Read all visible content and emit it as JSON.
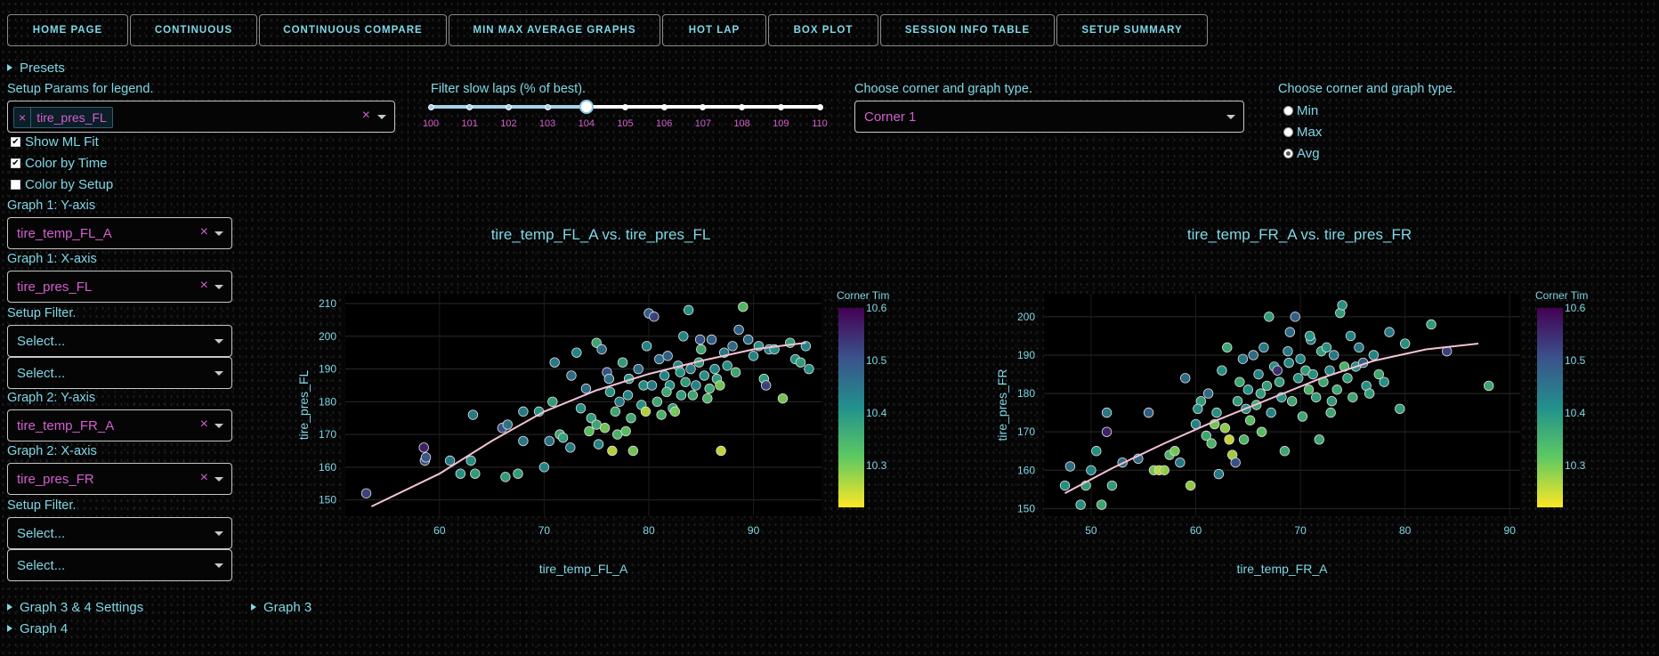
{
  "nav": {
    "tabs": [
      "HOME PAGE",
      "CONTINUOUS",
      "CONTINUOUS COMPARE",
      "MIN MAX AVERAGE GRAPHS",
      "HOT LAP",
      "BOX PLOT",
      "SESSION INFO TABLE",
      "SETUP SUMMARY"
    ]
  },
  "presets_label": "Presets",
  "legend": {
    "label": "Setup Params for legend.",
    "tag": "tire_pres_FL",
    "tag_remove": "×",
    "clear": "×"
  },
  "checkboxes": {
    "ml_fit": {
      "label": "Show ML Fit",
      "checked": true
    },
    "color_time": {
      "label": "Color by Time",
      "checked": true
    },
    "color_setup": {
      "label": "Color by Setup",
      "checked": false
    }
  },
  "graph1": {
    "y_label": "Graph 1: Y-axis",
    "y_value": "tire_temp_FL_A",
    "x_label": "Graph 1: X-axis",
    "x_value": "tire_pres_FL",
    "filter_label": "Setup Filter.",
    "filter1": "Select...",
    "filter2": "Select..."
  },
  "graph2": {
    "y_label": "Graph 2: Y-axis",
    "y_value": "tire_temp_FR_A",
    "x_label": "Graph 2: X-axis",
    "x_value": "tire_pres_FR",
    "filter_label": "Setup Filter.",
    "filter1": "Select...",
    "filter2": "Select..."
  },
  "clear_icon": "×",
  "slider": {
    "label": "Filter slow laps (% of best).",
    "marks": [
      "100",
      "101",
      "102",
      "103",
      "104",
      "105",
      "106",
      "107",
      "108",
      "109",
      "110"
    ],
    "value": 104
  },
  "corner": {
    "label": "Choose corner and graph type.",
    "value": "Corner 1"
  },
  "graph_type": {
    "label": "Choose corner and graph type.",
    "options": [
      "Min",
      "Max",
      "Avg"
    ],
    "selected": "Avg"
  },
  "collapsibles": {
    "g34": "Graph 3 & 4 Settings",
    "g3": "Graph 3",
    "g4": "Graph 4"
  },
  "colors": {
    "accent": "#7fd7e6",
    "value": "#d45fd0",
    "fit": "#f4c2d8"
  },
  "chart_data": [
    {
      "type": "scatter",
      "title": "tire_temp_FL_A vs. tire_pres_FL",
      "xlabel": "tire_temp_FL_A",
      "ylabel": "tire_pres_FL",
      "xlim": [
        51,
        96.5
      ],
      "ylim": [
        145,
        213
      ],
      "xticks": [
        60,
        70,
        80,
        90
      ],
      "yticks": [
        150,
        160,
        170,
        180,
        190,
        200,
        210
      ],
      "colorbar": {
        "title": "Corner Times",
        "range": [
          10.22,
          10.6
        ],
        "ticks": [
          10.3,
          10.4,
          10.5,
          10.6
        ],
        "colorscale": "viridis-reversed"
      },
      "fit": [
        [
          53.5,
          148
        ],
        [
          60,
          158
        ],
        [
          65,
          168
        ],
        [
          70,
          177
        ],
        [
          75,
          183.5
        ],
        [
          80,
          188.5
        ],
        [
          85,
          192.5
        ],
        [
          90,
          196
        ],
        [
          95,
          198
        ]
      ],
      "points": [
        [
          53,
          152,
          10.52
        ],
        [
          58.5,
          166,
          10.56
        ],
        [
          58.6,
          162,
          10.5
        ],
        [
          58.7,
          163,
          10.5
        ],
        [
          61,
          162,
          10.44
        ],
        [
          62,
          158,
          10.4
        ],
        [
          63,
          162,
          10.4
        ],
        [
          63.2,
          176,
          10.44
        ],
        [
          63.4,
          158,
          10.38
        ],
        [
          66,
          172,
          10.5
        ],
        [
          66.5,
          173,
          10.45
        ],
        [
          66.3,
          157,
          10.38
        ],
        [
          67.5,
          158,
          10.38
        ],
        [
          68,
          168,
          10.44
        ],
        [
          68,
          177,
          10.44
        ],
        [
          69.5,
          177,
          10.4
        ],
        [
          70,
          160,
          10.42
        ],
        [
          70.5,
          168,
          10.45
        ],
        [
          70.8,
          180,
          10.38
        ],
        [
          71,
          192,
          10.44
        ],
        [
          71.5,
          170,
          10.36
        ],
        [
          71.8,
          169,
          10.38
        ],
        [
          72.5,
          166,
          10.44
        ],
        [
          73.5,
          178,
          10.4
        ],
        [
          74,
          184,
          10.46
        ],
        [
          74.5,
          175,
          10.38
        ],
        [
          75,
          173,
          10.36
        ],
        [
          75,
          198,
          10.36
        ],
        [
          75.2,
          167,
          10.42
        ],
        [
          75.5,
          196,
          10.46
        ],
        [
          75.8,
          172,
          10.3
        ],
        [
          76,
          189,
          10.5
        ],
        [
          76.2,
          187,
          10.45
        ],
        [
          76.3,
          183,
          10.4
        ],
        [
          76.5,
          165,
          10.26
        ],
        [
          76.8,
          177,
          10.36
        ],
        [
          77,
          170,
          10.34
        ],
        [
          77.5,
          192,
          10.38
        ],
        [
          77.8,
          171,
          10.32
        ],
        [
          78,
          182,
          10.42
        ],
        [
          78.3,
          175,
          10.36
        ],
        [
          78.5,
          165,
          10.3
        ],
        [
          79,
          190,
          10.46
        ],
        [
          79.3,
          179,
          10.4
        ],
        [
          79.5,
          185,
          10.4
        ],
        [
          79.8,
          197,
          10.42
        ],
        [
          80,
          207,
          10.48
        ],
        [
          80.3,
          185,
          10.44
        ],
        [
          80.5,
          206,
          10.52
        ],
        [
          80.8,
          180,
          10.36
        ],
        [
          81,
          193,
          10.46
        ],
        [
          81.2,
          176,
          10.34
        ],
        [
          81.5,
          188,
          10.42
        ],
        [
          81.8,
          194,
          10.48
        ],
        [
          82,
          185,
          10.4
        ],
        [
          82.3,
          178,
          10.38
        ],
        [
          82.5,
          177,
          10.3
        ],
        [
          82.8,
          191,
          10.42
        ],
        [
          83,
          189,
          10.4
        ],
        [
          83.3,
          200,
          10.42
        ],
        [
          83.5,
          186,
          10.38
        ],
        [
          83.8,
          208,
          10.4
        ],
        [
          84,
          190,
          10.44
        ],
        [
          84.2,
          182,
          10.36
        ],
        [
          84.5,
          185,
          10.42
        ],
        [
          84.8,
          192,
          10.38
        ],
        [
          85,
          196,
          10.36
        ],
        [
          85.3,
          188,
          10.4
        ],
        [
          85.6,
          181,
          10.34
        ],
        [
          85.8,
          184,
          10.36
        ],
        [
          86,
          199,
          10.48
        ],
        [
          86.3,
          190,
          10.42
        ],
        [
          86.5,
          187,
          10.38
        ],
        [
          86.8,
          185,
          10.3
        ],
        [
          86.9,
          165,
          10.25
        ],
        [
          87.2,
          195,
          10.44
        ],
        [
          87.5,
          191,
          10.4
        ],
        [
          88,
          197,
          10.46
        ],
        [
          88.3,
          189,
          10.36
        ],
        [
          88.6,
          202,
          10.48
        ],
        [
          89,
          209,
          10.33
        ],
        [
          89.5,
          199,
          10.46
        ],
        [
          90,
          194,
          10.42
        ],
        [
          90.5,
          197,
          10.4
        ],
        [
          91,
          187,
          10.38
        ],
        [
          91.2,
          185,
          10.52
        ],
        [
          91.5,
          196,
          10.44
        ],
        [
          92,
          196,
          10.4
        ],
        [
          92.8,
          181,
          10.3
        ],
        [
          93.5,
          198,
          10.38
        ],
        [
          94,
          193,
          10.4
        ],
        [
          94.5,
          192,
          10.38
        ],
        [
          95,
          197,
          10.42
        ],
        [
          95.3,
          190,
          10.4
        ],
        [
          84.9,
          199,
          10.5
        ],
        [
          77.2,
          180,
          10.44
        ],
        [
          79.7,
          177,
          10.26
        ],
        [
          74.3,
          171,
          10.32
        ],
        [
          72.6,
          188,
          10.46
        ],
        [
          73.1,
          195,
          10.42
        ],
        [
          78.1,
          187,
          10.4
        ],
        [
          81.7,
          183,
          10.36
        ],
        [
          83.1,
          182,
          10.38
        ]
      ]
    },
    {
      "type": "scatter",
      "title": "tire_temp_FR_A vs. tire_pres_FR",
      "xlabel": "tire_temp_FR_A",
      "ylabel": "tire_pres_FR",
      "xlim": [
        45.5,
        91
      ],
      "ylim": [
        148,
        206
      ],
      "xticks": [
        50,
        60,
        70,
        80,
        90
      ],
      "yticks": [
        150,
        160,
        170,
        180,
        190,
        200
      ],
      "colorbar": {
        "title": "Corner Times",
        "range": [
          10.22,
          10.6
        ],
        "ticks": [
          10.3,
          10.4,
          10.5,
          10.6
        ],
        "colorscale": "viridis-reversed"
      },
      "fit": [
        [
          47.5,
          154
        ],
        [
          52,
          160.5
        ],
        [
          57,
          167
        ],
        [
          62,
          173
        ],
        [
          67,
          178.5
        ],
        [
          72,
          184
        ],
        [
          77,
          188.5
        ],
        [
          82,
          191.5
        ],
        [
          87,
          193
        ]
      ],
      "points": [
        [
          47.5,
          156,
          10.4
        ],
        [
          48,
          161,
          10.46
        ],
        [
          49,
          151,
          10.4
        ],
        [
          49.5,
          156,
          10.38
        ],
        [
          50,
          160,
          10.42
        ],
        [
          50.5,
          165,
          10.4
        ],
        [
          51,
          151,
          10.36
        ],
        [
          51.5,
          175,
          10.44
        ],
        [
          51.5,
          170,
          10.56
        ],
        [
          52,
          156,
          10.38
        ],
        [
          53,
          162,
          10.46
        ],
        [
          54.5,
          163,
          10.46
        ],
        [
          55.5,
          175,
          10.48
        ],
        [
          56,
          160,
          10.3
        ],
        [
          56.5,
          160,
          10.26
        ],
        [
          57,
          160,
          10.28
        ],
        [
          57.5,
          164,
          10.34
        ],
        [
          58,
          165,
          10.3
        ],
        [
          58.5,
          162,
          10.44
        ],
        [
          59,
          184,
          10.46
        ],
        [
          59.5,
          156,
          10.28
        ],
        [
          60,
          172,
          10.42
        ],
        [
          60.5,
          178,
          10.38
        ],
        [
          61,
          169,
          10.36
        ],
        [
          61.2,
          180,
          10.46
        ],
        [
          61.5,
          167,
          10.34
        ],
        [
          61.8,
          172,
          10.3
        ],
        [
          62,
          175,
          10.4
        ],
        [
          62.2,
          159,
          10.44
        ],
        [
          62.5,
          186,
          10.4
        ],
        [
          62.8,
          171,
          10.28
        ],
        [
          63,
          192,
          10.36
        ],
        [
          63.2,
          168,
          10.25
        ],
        [
          63.5,
          164,
          10.27
        ],
        [
          63.8,
          162,
          10.5
        ],
        [
          64,
          178,
          10.38
        ],
        [
          64.2,
          183,
          10.36
        ],
        [
          64.5,
          189,
          10.44
        ],
        [
          64.8,
          176,
          10.4
        ],
        [
          65,
          181,
          10.4
        ],
        [
          65.2,
          173,
          10.32
        ],
        [
          65.5,
          190,
          10.46
        ],
        [
          65.8,
          177,
          10.36
        ],
        [
          66,
          185,
          10.42
        ],
        [
          66.2,
          180,
          10.38
        ],
        [
          66.5,
          192,
          10.44
        ],
        [
          66.8,
          182,
          10.38
        ],
        [
          67,
          200,
          10.38
        ],
        [
          67.2,
          175,
          10.42
        ],
        [
          67.5,
          187,
          10.4
        ],
        [
          67.8,
          186,
          10.55
        ],
        [
          68,
          183,
          10.38
        ],
        [
          68.2,
          179,
          10.4
        ],
        [
          68.5,
          165,
          10.36
        ],
        [
          68.8,
          191,
          10.44
        ],
        [
          69,
          196,
          10.46
        ],
        [
          69.2,
          178,
          10.36
        ],
        [
          69.5,
          200,
          10.48
        ],
        [
          69.8,
          184,
          10.4
        ],
        [
          70,
          189,
          10.42
        ],
        [
          70.2,
          174,
          10.36
        ],
        [
          70.5,
          186,
          10.38
        ],
        [
          70.8,
          181,
          10.34
        ],
        [
          71,
          194,
          10.44
        ],
        [
          71.2,
          185,
          10.4
        ],
        [
          71.5,
          179,
          10.38
        ],
        [
          71.8,
          168,
          10.36
        ],
        [
          72,
          191,
          10.38
        ],
        [
          72.2,
          183,
          10.36
        ],
        [
          72.5,
          192,
          10.4
        ],
        [
          72.8,
          186,
          10.42
        ],
        [
          73,
          178,
          10.38
        ],
        [
          73.2,
          190,
          10.44
        ],
        [
          73.5,
          181,
          10.36
        ],
        [
          73.8,
          201,
          10.38
        ],
        [
          74,
          203,
          10.4
        ],
        [
          74.2,
          187,
          10.34
        ],
        [
          74.5,
          184,
          10.38
        ],
        [
          74.8,
          195,
          10.42
        ],
        [
          75,
          179,
          10.36
        ],
        [
          75.3,
          187,
          10.4
        ],
        [
          75.6,
          192,
          10.44
        ],
        [
          76,
          188,
          10.48
        ],
        [
          76.3,
          182,
          10.4
        ],
        [
          76.6,
          180,
          10.38
        ],
        [
          77,
          190,
          10.42
        ],
        [
          77.5,
          185,
          10.36
        ],
        [
          78,
          183,
          10.4
        ],
        [
          78.5,
          196,
          10.44
        ],
        [
          79.5,
          176,
          10.38
        ],
        [
          80,
          193,
          10.4
        ],
        [
          82.5,
          198,
          10.38
        ],
        [
          84,
          191,
          10.52
        ],
        [
          88,
          182,
          10.36
        ],
        [
          66.3,
          170,
          10.32
        ],
        [
          64.6,
          168,
          10.34
        ],
        [
          60.2,
          176,
          10.4
        ],
        [
          68.9,
          188,
          10.42
        ],
        [
          72.9,
          175,
          10.36
        ],
        [
          70.9,
          195,
          10.4
        ]
      ]
    }
  ]
}
